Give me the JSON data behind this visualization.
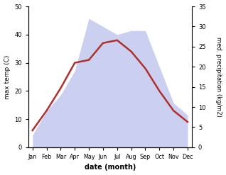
{
  "months": [
    "Jan",
    "Feb",
    "Mar",
    "Apr",
    "May",
    "Jun",
    "Jul",
    "Aug",
    "Sep",
    "Oct",
    "Nov",
    "Dec"
  ],
  "temperature": [
    6,
    13,
    21,
    30,
    31,
    37,
    38,
    34,
    28,
    20,
    13,
    9
  ],
  "precipitation": [
    3,
    9,
    13,
    19,
    32,
    30,
    28,
    29,
    29,
    20,
    11,
    8
  ],
  "temp_color": "#b03030",
  "precip_fill_color": "#b0b8e8",
  "precip_alpha": 0.65,
  "ylabel_left": "max temp (C)",
  "ylabel_right": "med. precipitation (kg/m2)",
  "xlabel": "date (month)",
  "ylim_left": [
    0,
    50
  ],
  "ylim_right": [
    0,
    35
  ],
  "yticks_left": [
    0,
    10,
    20,
    30,
    40,
    50
  ],
  "yticks_right": [
    0,
    5,
    10,
    15,
    20,
    25,
    30,
    35
  ],
  "bg_color": "#ffffff",
  "line_width": 1.8,
  "precip_scale_factor": 1.4286
}
